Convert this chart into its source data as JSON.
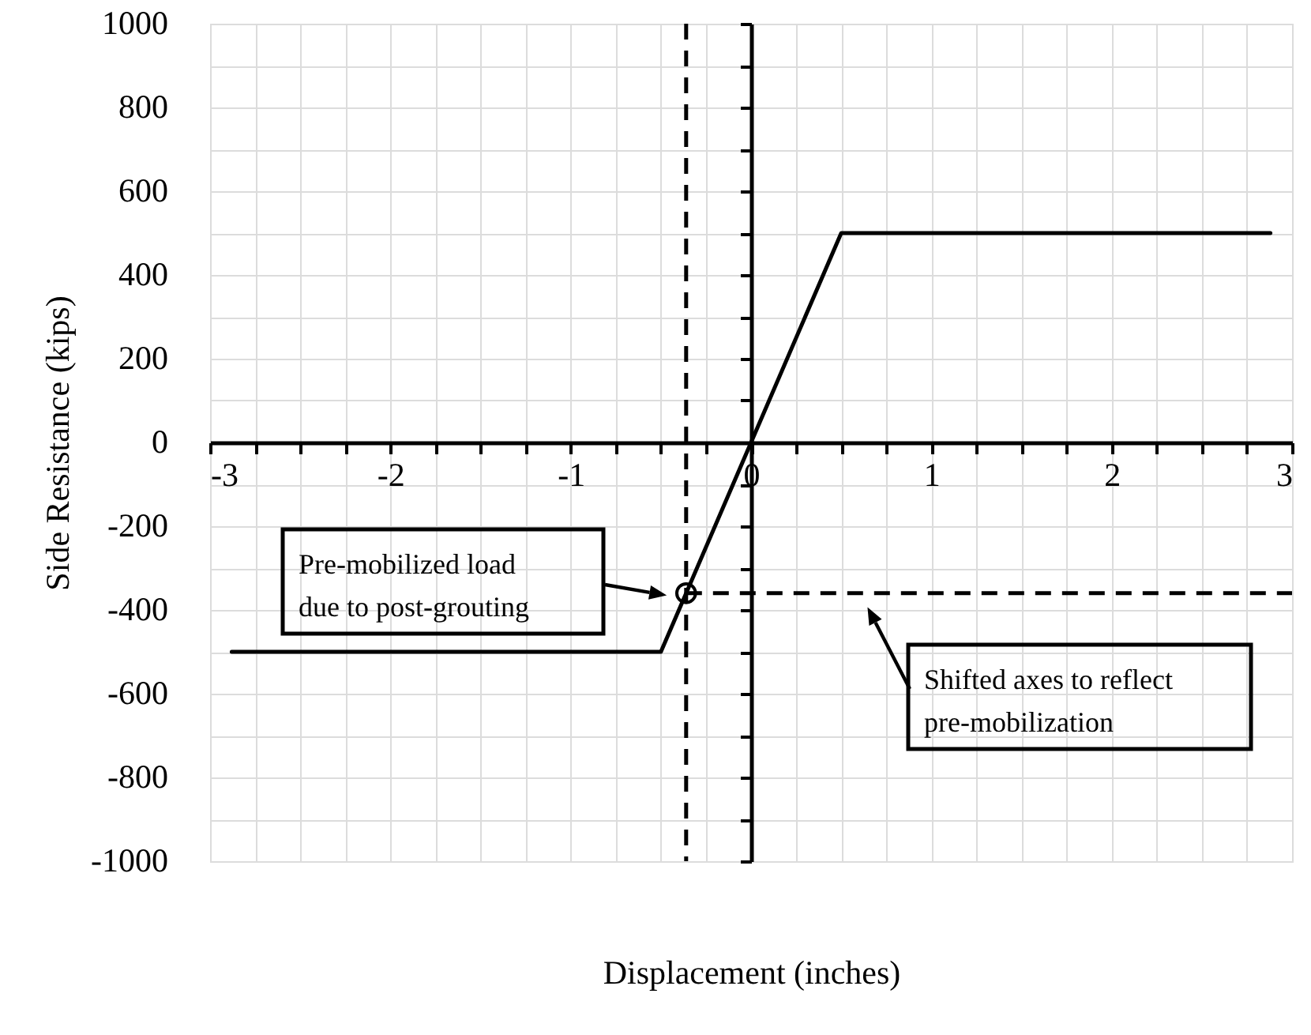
{
  "chart_data": {
    "type": "line",
    "xlabel": "Displacement (inches)",
    "ylabel": "Side Resistance (kips)",
    "xlim": [
      -3,
      3
    ],
    "ylim": [
      -1000,
      1000
    ],
    "xticks": [
      -3,
      {
        "value": -2.75,
        "label": null
      },
      {
        "value": -2.5,
        "label": null
      },
      {
        "value": -2.25,
        "label": null
      },
      -2,
      {
        "value": -1.75,
        "label": null
      },
      {
        "value": -1.5,
        "label": null
      },
      {
        "value": -1.25,
        "label": null
      },
      -1,
      {
        "value": -0.75,
        "label": null
      },
      {
        "value": -0.5,
        "label": null
      },
      {
        "value": -0.25,
        "label": null
      },
      0,
      {
        "value": 0.25,
        "label": null
      },
      {
        "value": 0.5,
        "label": null
      },
      {
        "value": 0.75,
        "label": null
      },
      1,
      {
        "value": 1.25,
        "label": null
      },
      {
        "value": 1.5,
        "label": null
      },
      {
        "value": 1.75,
        "label": null
      },
      2,
      {
        "value": 2.25,
        "label": null
      },
      {
        "value": 2.5,
        "label": null
      },
      {
        "value": 2.75,
        "label": null
      },
      3
    ],
    "yticks": [
      -1000,
      {
        "value": -900,
        "label": null
      },
      -800,
      {
        "value": -700,
        "label": null
      },
      -600,
      {
        "value": -500,
        "label": null
      },
      -400,
      {
        "value": -300,
        "label": null
      },
      -200,
      {
        "value": -100,
        "label": null
      },
      0,
      {
        "value": 100,
        "label": null
      },
      200,
      {
        "value": 300,
        "label": null
      },
      400,
      {
        "value": 500,
        "label": null
      },
      600,
      {
        "value": 700,
        "label": null
      },
      800,
      {
        "value": 900,
        "label": null
      },
      1000
    ],
    "grid": true,
    "series": [
      {
        "type": "line",
        "color": "#000000",
        "x": [
          -2.88,
          -0.5,
          0,
          0.5,
          2.88
        ],
        "values": [
          -500,
          -500,
          0,
          500,
          500
        ]
      },
      {
        "type": "scatter",
        "color": "#000000",
        "marker": "circle",
        "x": [
          -0.36
        ],
        "values": [
          -360
        ]
      }
    ],
    "ref_lines": [
      {
        "axis": "x",
        "value": -0.36,
        "color": "#000000",
        "line_style": "dashed"
      },
      {
        "axis": "y",
        "value": -360,
        "color": "#000000",
        "line_style": "dashed"
      }
    ],
    "annotations": [
      "Pre-mobilized load due to post-grouting",
      "Shifted axes to reflect pre-mobilization"
    ]
  }
}
